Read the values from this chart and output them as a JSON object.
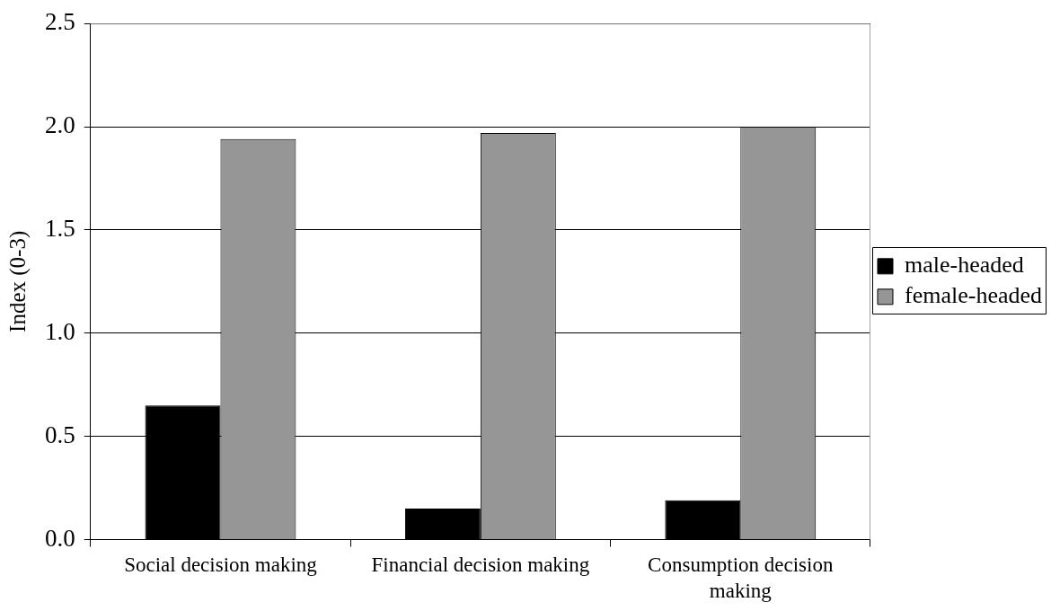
{
  "chart_data": {
    "type": "bar",
    "ylabel": "Index (0-3)",
    "categories": [
      "Social decision making",
      "Financial decision making",
      "Consumption decision making"
    ],
    "series": [
      {
        "name": "male-headed",
        "color": "#000000",
        "values": [
          0.65,
          0.15,
          0.19
        ]
      },
      {
        "name": "female-headed",
        "color": "#969696",
        "values": [
          1.94,
          1.97,
          2.0
        ]
      }
    ],
    "ylim": [
      0,
      2.5
    ],
    "yticks": [
      {
        "value": 0,
        "label": "0.0"
      },
      0.5,
      {
        "value": 1,
        "label": "1.0"
      },
      1.5,
      {
        "value": 2,
        "label": "2.0"
      },
      2.5
    ],
    "grid": "y",
    "legend": "right"
  }
}
